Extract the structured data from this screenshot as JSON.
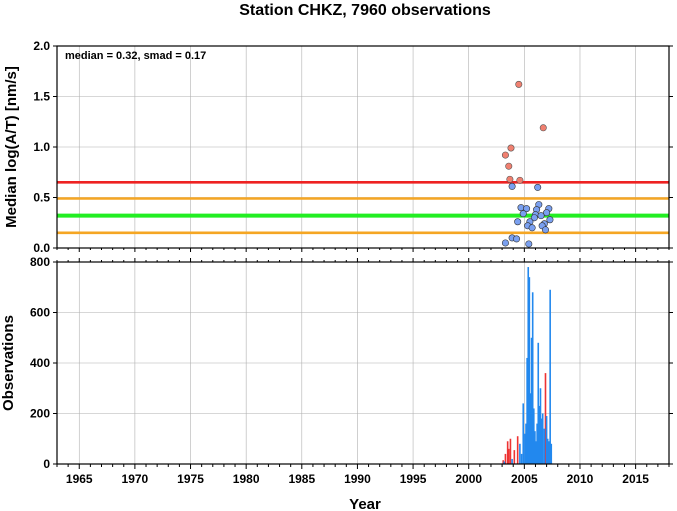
{
  "chart_data": [
    {
      "type": "scatter",
      "title": "Station CHKZ, 7960 observations",
      "ylabel": "Median log(A/T) [nm/s]",
      "annotation": "median = 0.32, smad = 0.17",
      "xlim": [
        1963,
        2018
      ],
      "ylim": [
        0,
        2.0
      ],
      "yticks": [
        0.0,
        0.5,
        1.0,
        1.5,
        2.0
      ],
      "ytick_labels": [
        "0.0",
        "0.5",
        "1.0",
        "1.5",
        "2.0"
      ],
      "grid": true,
      "colors": {
        "outlier": "#f08070",
        "inlier": "#7aa0f0",
        "upper_line": "#ee2222",
        "median_line": "#22ee22",
        "band_line": "#f5a623"
      },
      "reference_lines": [
        {
          "role": "upper",
          "y": 0.65
        },
        {
          "role": "band",
          "y": 0.49
        },
        {
          "role": "median",
          "y": 0.32
        },
        {
          "role": "band",
          "y": 0.15
        }
      ],
      "outliers": [
        {
          "x": 2004.5,
          "y": 1.62
        },
        {
          "x": 2006.7,
          "y": 1.19
        },
        {
          "x": 2003.8,
          "y": 0.99
        },
        {
          "x": 2003.3,
          "y": 0.92
        },
        {
          "x": 2003.6,
          "y": 0.81
        },
        {
          "x": 2003.7,
          "y": 0.68
        },
        {
          "x": 2004.6,
          "y": 0.67
        }
      ],
      "inliers": [
        {
          "x": 2003.9,
          "y": 0.61
        },
        {
          "x": 2006.2,
          "y": 0.6
        },
        {
          "x": 2004.7,
          "y": 0.4
        },
        {
          "x": 2005.2,
          "y": 0.39
        },
        {
          "x": 2006.3,
          "y": 0.43
        },
        {
          "x": 2006.1,
          "y": 0.38
        },
        {
          "x": 2007.2,
          "y": 0.39
        },
        {
          "x": 2007.0,
          "y": 0.35
        },
        {
          "x": 2006.0,
          "y": 0.33
        },
        {
          "x": 2004.9,
          "y": 0.34
        },
        {
          "x": 2005.9,
          "y": 0.3
        },
        {
          "x": 2006.5,
          "y": 0.32
        },
        {
          "x": 2007.3,
          "y": 0.28
        },
        {
          "x": 2004.4,
          "y": 0.26
        },
        {
          "x": 2005.5,
          "y": 0.26
        },
        {
          "x": 2006.8,
          "y": 0.24
        },
        {
          "x": 2005.3,
          "y": 0.22
        },
        {
          "x": 2006.6,
          "y": 0.22
        },
        {
          "x": 2005.7,
          "y": 0.2
        },
        {
          "x": 2006.9,
          "y": 0.18
        },
        {
          "x": 2003.9,
          "y": 0.1
        },
        {
          "x": 2004.3,
          "y": 0.09
        },
        {
          "x": 2003.3,
          "y": 0.05
        },
        {
          "x": 2005.4,
          "y": 0.04
        }
      ]
    },
    {
      "type": "bar",
      "ylabel": "Observations",
      "xlabel": "Year",
      "xlim": [
        1963,
        2018
      ],
      "ylim": [
        0,
        800
      ],
      "xticks": [
        1965,
        1970,
        1975,
        1980,
        1985,
        1990,
        1995,
        2000,
        2005,
        2010,
        2015
      ],
      "xtick_labels": [
        "1965",
        "1970",
        "1975",
        "1980",
        "1985",
        "1990",
        "1995",
        "2000",
        "2005",
        "2010",
        "2015"
      ],
      "yticks": [
        0,
        200,
        400,
        600,
        800
      ],
      "ytick_labels": [
        "0",
        "200",
        "400",
        "600",
        "800"
      ],
      "grid": true,
      "colors": {
        "outlier": "#ee3333",
        "inlier": "#2288ee"
      },
      "series": [
        {
          "role": "outlier",
          "bars": [
            {
              "x": 2003.1,
              "y": 15
            },
            {
              "x": 2003.3,
              "y": 40
            },
            {
              "x": 2003.5,
              "y": 90
            },
            {
              "x": 2003.6,
              "y": 60
            },
            {
              "x": 2003.75,
              "y": 100
            },
            {
              "x": 2004.1,
              "y": 55
            },
            {
              "x": 2004.4,
              "y": 110
            },
            {
              "x": 2005.2,
              "y": 45
            },
            {
              "x": 2006.6,
              "y": 150
            },
            {
              "x": 2006.9,
              "y": 360
            }
          ]
        },
        {
          "role": "inlier",
          "bars": [
            {
              "x": 2003.2,
              "y": 10
            },
            {
              "x": 2003.9,
              "y": 20
            },
            {
              "x": 2004.6,
              "y": 80
            },
            {
              "x": 2004.75,
              "y": 40
            },
            {
              "x": 2004.9,
              "y": 240
            },
            {
              "x": 2005.05,
              "y": 120
            },
            {
              "x": 2005.15,
              "y": 160
            },
            {
              "x": 2005.25,
              "y": 420
            },
            {
              "x": 2005.35,
              "y": 780
            },
            {
              "x": 2005.45,
              "y": 740
            },
            {
              "x": 2005.55,
              "y": 280
            },
            {
              "x": 2005.65,
              "y": 500
            },
            {
              "x": 2005.75,
              "y": 680
            },
            {
              "x": 2005.85,
              "y": 220
            },
            {
              "x": 2005.95,
              "y": 130
            },
            {
              "x": 2006.05,
              "y": 90
            },
            {
              "x": 2006.15,
              "y": 160
            },
            {
              "x": 2006.25,
              "y": 480
            },
            {
              "x": 2006.35,
              "y": 230
            },
            {
              "x": 2006.45,
              "y": 300
            },
            {
              "x": 2006.55,
              "y": 180
            },
            {
              "x": 2006.65,
              "y": 200
            },
            {
              "x": 2006.8,
              "y": 140
            },
            {
              "x": 2007.0,
              "y": 190
            },
            {
              "x": 2007.1,
              "y": 100
            },
            {
              "x": 2007.2,
              "y": 90
            },
            {
              "x": 2007.32,
              "y": 690
            },
            {
              "x": 2007.42,
              "y": 80
            }
          ]
        }
      ]
    }
  ]
}
